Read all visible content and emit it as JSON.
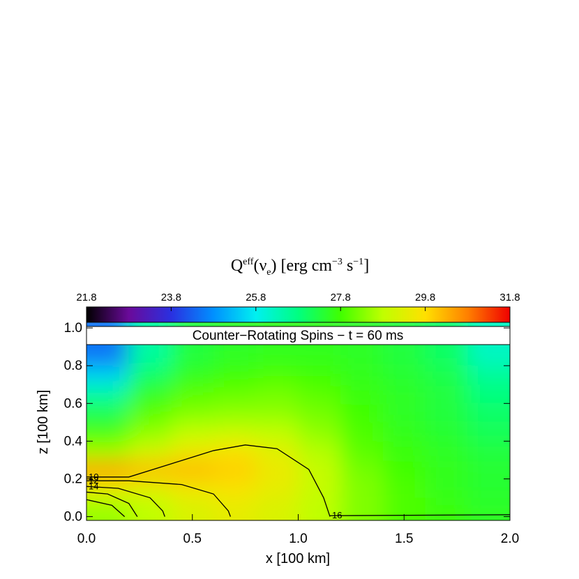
{
  "chart_data": {
    "type": "heatmap",
    "title": [
      "Q",
      "eff",
      "(ν",
      "e",
      ") [erg cm",
      "−3",
      " s",
      "−1",
      "]"
    ],
    "panel_label": "Counter−Rotating Spins − t = 60 ms",
    "x_label": "x [100 km]",
    "y_label": "z [100 km]",
    "xlim": [
      0,
      2
    ],
    "xticks": [
      {
        "value": 0,
        "label": "0.0"
      },
      {
        "value": 0.5,
        "label": "0.5"
      },
      {
        "value": 1,
        "label": "1.0"
      },
      {
        "value": 1.5,
        "label": "1.5"
      },
      {
        "value": 2,
        "label": "2.0"
      }
    ],
    "ylim": [
      -0.02,
      1.03
    ],
    "yticks": [
      {
        "value": 0,
        "label": "0.0"
      },
      0.2,
      0.4,
      0.6,
      0.8,
      {
        "value": 1,
        "label": "1.0"
      }
    ],
    "colorbar": {
      "lim": [
        21.8,
        31.8
      ],
      "ticks": [
        21.8,
        23.8,
        25.8,
        27.8,
        29.8,
        31.8
      ]
    },
    "colormap": [
      "#000000",
      "#6a0a9a",
      "#2a30e0",
      "#0090ff",
      "#00f0f0",
      "#00ff80",
      "#40ff00",
      "#c0ff00",
      "#ffe000",
      "#ff8000",
      "#f00000"
    ],
    "field": {
      "x": [
        0.1,
        0.3,
        0.5,
        0.7,
        0.9,
        1.1,
        1.3,
        1.5,
        1.7,
        1.9
      ],
      "y": [
        0.85,
        0.75,
        0.65,
        0.55,
        0.45,
        0.35,
        0.25,
        0.15,
        0.05
      ],
      "values": [
        [
          24.5,
          26.5,
          27.3,
          27.5,
          27.6,
          27.6,
          27.5,
          27.3,
          27.0,
          26.2
        ],
        [
          25.5,
          27.0,
          27.6,
          27.8,
          27.9,
          27.8,
          27.6,
          27.4,
          27.2,
          26.6
        ],
        [
          26.5,
          27.6,
          28.0,
          28.1,
          28.2,
          28.0,
          27.7,
          27.5,
          27.3,
          26.8
        ],
        [
          27.2,
          28.0,
          28.3,
          28.4,
          28.4,
          28.2,
          27.8,
          27.5,
          27.3,
          27.0
        ],
        [
          27.8,
          28.4,
          28.8,
          28.9,
          28.8,
          28.4,
          27.9,
          27.6,
          27.4,
          27.1
        ],
        [
          28.5,
          29.0,
          29.5,
          29.7,
          29.3,
          28.7,
          28.0,
          27.7,
          27.5,
          27.3
        ],
        [
          30.5,
          30.2,
          30.2,
          30.0,
          29.5,
          28.9,
          28.2,
          27.8,
          27.6,
          27.4
        ],
        [
          29.5,
          29.3,
          29.6,
          29.7,
          29.4,
          28.9,
          28.3,
          27.9,
          27.6,
          27.4
        ],
        [
          28.5,
          28.8,
          29.2,
          29.4,
          29.2,
          28.8,
          28.3,
          27.9,
          27.7,
          27.5
        ]
      ]
    },
    "contours": [
      {
        "label": 10,
        "x": [
          0,
          0.2,
          0.4,
          0.6,
          0.75,
          0.9,
          1.05,
          1.12,
          1.15
        ],
        "y": [
          0.21,
          0.21,
          0.28,
          0.35,
          0.38,
          0.36,
          0.25,
          0.1,
          0
        ]
      },
      {
        "label": 12,
        "x": [
          0,
          0.2,
          0.45,
          0.6,
          0.67,
          0.68
        ],
        "y": [
          0.19,
          0.19,
          0.17,
          0.12,
          0.03,
          0
        ]
      },
      {
        "label": 14,
        "x": [
          0,
          0.15,
          0.3,
          0.36,
          0.37
        ],
        "y": [
          0.16,
          0.15,
          0.1,
          0.03,
          0
        ]
      },
      {
        "label": null,
        "x": [
          0,
          0.1,
          0.2,
          0.24
        ],
        "y": [
          0.13,
          0.12,
          0.07,
          0
        ]
      },
      {
        "label": null,
        "x": [
          0,
          0.12,
          0.18
        ],
        "y": [
          0.09,
          0.06,
          0
        ]
      },
      {
        "label": 16,
        "x": [
          1.15,
          2
        ],
        "y": [
          0.005,
          0.01
        ]
      }
    ]
  }
}
